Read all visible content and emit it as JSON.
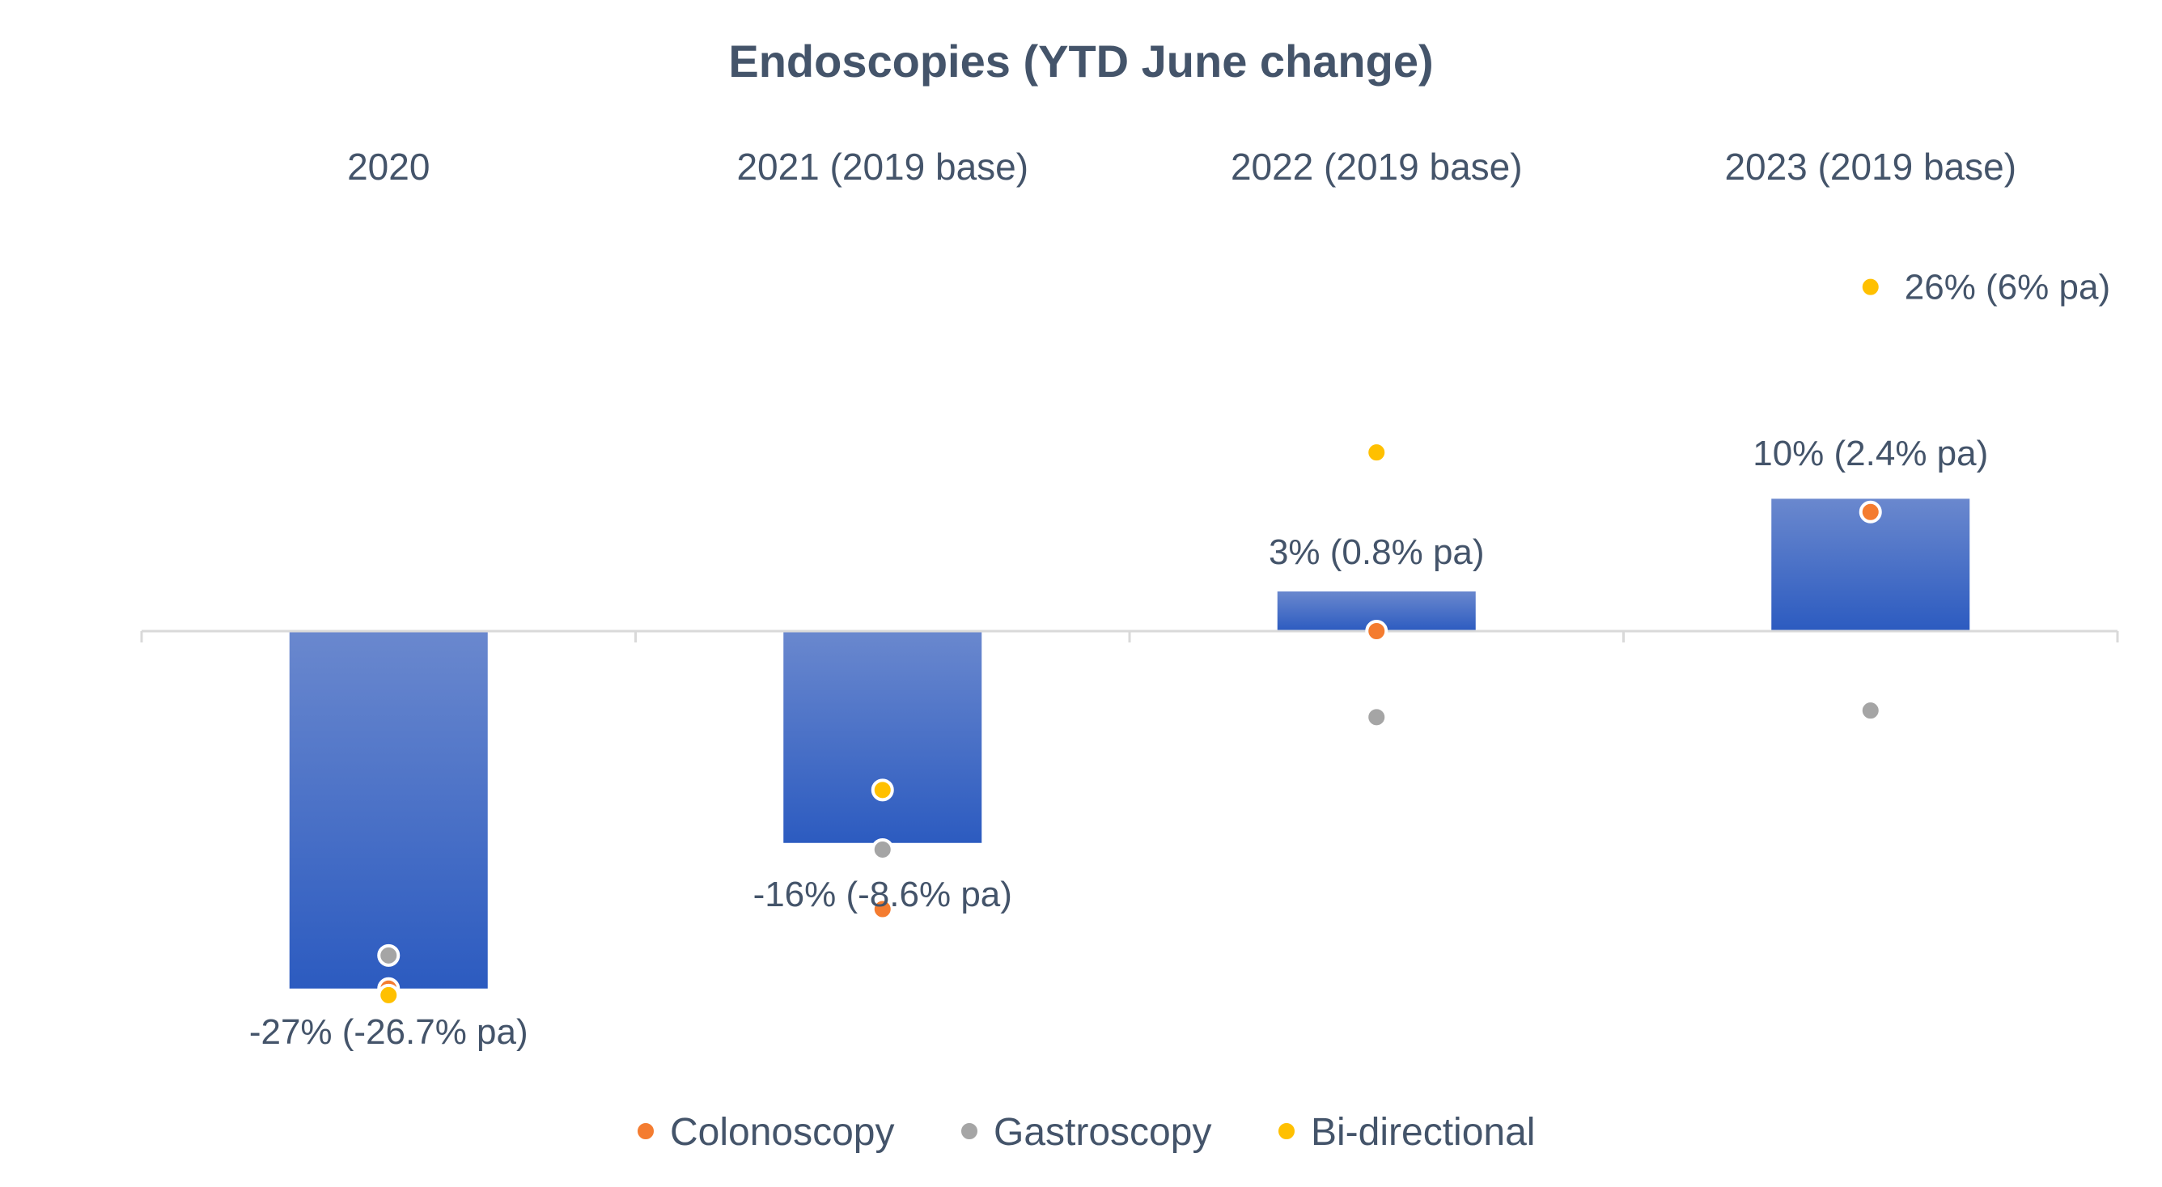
{
  "chart_data": {
    "type": "bar",
    "title": "Endoscopies (YTD June change)",
    "categories": [
      "2020",
      "2021 (2019 base)",
      "2022 (2019 base)",
      "2023 (2019 base)"
    ],
    "bar_values": [
      -27,
      -16,
      3,
      10
    ],
    "bar_labels": [
      "-27% (-26.7% pa)",
      "-16% (-8.6% pa)",
      "3% (0.8% pa)",
      "10% (2.4% pa)"
    ],
    "series": [
      {
        "name": "Colonoscopy",
        "type": "scatter",
        "values": [
          -27,
          -21,
          0,
          9
        ]
      },
      {
        "name": "Gastroscopy",
        "type": "scatter",
        "values": [
          -24.5,
          -16.5,
          -6.5,
          -6
        ]
      },
      {
        "name": "Bi-directional",
        "type": "scatter",
        "values": [
          -27.5,
          -12,
          13.5,
          26
        ]
      }
    ],
    "point_labels": [
      {
        "series": "Bi-directional",
        "category": "2023 (2019 base)",
        "text": "26% (6% pa)"
      }
    ],
    "ylim": [
      -33,
      33
    ],
    "grid": false,
    "legend_position": "bottom",
    "colors": {
      "bar_top": "#6A88CE",
      "bar_bottom": "#2C5BC0",
      "Colonoscopy": "#F47C30",
      "Gastroscopy": "#A5A5A5",
      "Bi-directional": "#FFC000",
      "axis": "#D9D9D9",
      "text": "#44546A"
    }
  }
}
